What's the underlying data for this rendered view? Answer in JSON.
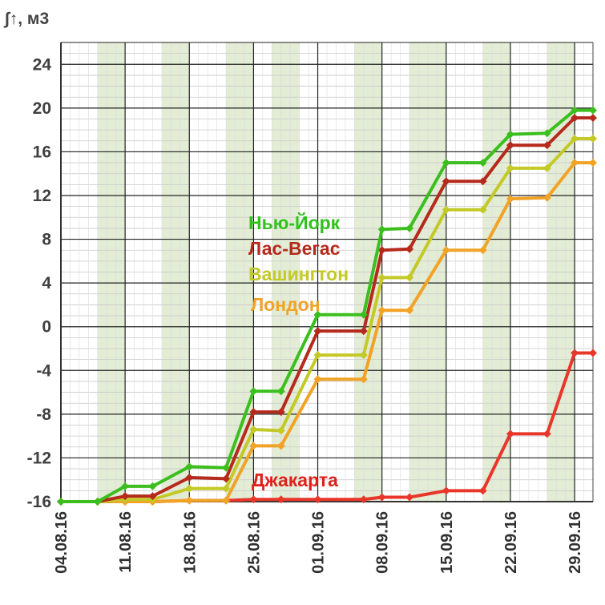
{
  "chart_data": {
    "type": "line",
    "ylabel": "∫↑, м3",
    "xlabel": "",
    "title": "",
    "ylim": [
      -16,
      26
    ],
    "yticks": [
      -16,
      -12,
      -8,
      -4,
      0,
      4,
      8,
      12,
      16,
      20,
      24
    ],
    "x_tick_labels": [
      "04.08.16",
      "11.08.16",
      "18.08.16",
      "25.08.16",
      "01.09.16",
      "08.09.16",
      "15.09.16",
      "22.09.16",
      "29.09.16"
    ],
    "x_start": "2016-08-04",
    "x_end": "2016-10-01",
    "grid": true,
    "shaded_bands": [
      [
        "2016-08-08",
        "2016-08-11"
      ],
      [
        "2016-08-15",
        "2016-08-18"
      ],
      [
        "2016-08-22",
        "2016-08-25"
      ],
      [
        "2016-08-27",
        "2016-08-30"
      ],
      [
        "2016-09-05",
        "2016-09-08"
      ],
      [
        "2016-09-11",
        "2016-09-15"
      ],
      [
        "2016-09-19",
        "2016-09-22"
      ],
      [
        "2016-09-26",
        "2016-09-29"
      ]
    ],
    "x": [
      "2016-08-04",
      "2016-08-08",
      "2016-08-11",
      "2016-08-14",
      "2016-08-18",
      "2016-08-22",
      "2016-08-25",
      "2016-08-28",
      "2016-09-01",
      "2016-09-06",
      "2016-09-08",
      "2016-09-11",
      "2016-09-15",
      "2016-09-19",
      "2016-09-22",
      "2016-09-26",
      "2016-09-29",
      "2016-10-01"
    ],
    "series": [
      {
        "name": "Нью-Йорк",
        "color": "#3cbf1e",
        "values": [
          -16,
          -16,
          -14.6,
          -14.6,
          -12.8,
          -12.9,
          -5.9,
          -5.9,
          1.1,
          1.1,
          8.9,
          9.0,
          15.0,
          15.0,
          17.6,
          17.7,
          19.8,
          19.8
        ]
      },
      {
        "name": "Лас-Вегас",
        "color": "#b52a1c",
        "values": [
          -16,
          -16,
          -15.5,
          -15.5,
          -13.8,
          -13.9,
          -7.8,
          -7.8,
          -0.4,
          -0.4,
          7.0,
          7.1,
          13.3,
          13.3,
          16.6,
          16.6,
          19.1,
          19.1
        ]
      },
      {
        "name": "Вашингтон",
        "color": "#c3c926",
        "values": [
          -16,
          -16,
          -15.8,
          -15.8,
          -14.8,
          -14.8,
          -9.4,
          -9.5,
          -2.6,
          -2.6,
          4.5,
          4.5,
          10.7,
          10.7,
          14.5,
          14.5,
          17.2,
          17.2
        ]
      },
      {
        "name": "Лондон",
        "color": "#f0a326",
        "values": [
          -16,
          -16,
          -16,
          -16,
          -15.9,
          -15.9,
          -10.9,
          -10.9,
          -4.8,
          -4.8,
          1.5,
          1.5,
          7.0,
          7.0,
          11.7,
          11.8,
          15.0,
          15.0
        ]
      },
      {
        "name": "Джакарта",
        "color": "#e8372a",
        "values": [
          -16,
          -16,
          -16,
          -16,
          -15.9,
          -15.9,
          -15.8,
          -15.8,
          -15.8,
          -15.8,
          -15.6,
          -15.6,
          -15.0,
          -15.0,
          -9.8,
          -9.8,
          -2.4,
          -2.4
        ]
      }
    ],
    "series_label_colors": {
      "Нью-Йорк": "#2ec21a",
      "Лас-Вегас": "#b52a1c",
      "Вашингтон": "#c3c926",
      "Лондон": "#f0a326",
      "Джакарта": "#e0211a"
    }
  }
}
